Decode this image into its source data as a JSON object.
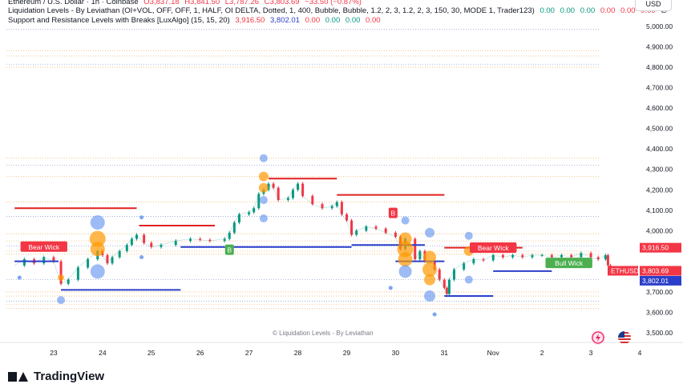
{
  "header": {
    "line1": {
      "symbol": "Ethereum / U.S. Dollar · 1h · Coinbase",
      "o": "O3,837.18",
      "h": "H3,841.50",
      "l": "L3,787.26",
      "c": "C3,803.69",
      "chg": "−33.50 (−0.87%)"
    },
    "line2": {
      "name": "Liquidation Levels - By Leviathan (OI+VOL, OFF, OFF, 1, HALF, OI DELTA, Dotted, 1, 400, Bubble, Bubble, 1.2, 2, 3, 1.2, 2, 3, 150, 30, MODE 1, Trader123)",
      "values": [
        "0.00",
        "0.00",
        "0.00",
        "0.00",
        "0.00",
        "0.00",
        "∅"
      ]
    },
    "line3": {
      "name": "Support and Resistance Levels with Breaks [LuxAlgo] (15, 15, 20)",
      "v1": "3,916.50",
      "v2": "3,802.01",
      "values": [
        "0.00",
        "0.00",
        "0.00",
        "0.00"
      ]
    }
  },
  "currency_button": "USD",
  "watermark": "© Liquidation Levels - By Leviathan",
  "brand": "TradingView",
  "colors": {
    "up": "#089981",
    "down": "#f23645",
    "resistance": "#e02020",
    "support": "#2b3ec9",
    "bubble_orange": "#ff9800",
    "bubble_blue": "#5b8def",
    "label_green": "#4caf50"
  },
  "price_axis": {
    "ticks": [
      "5,000.00",
      "4,900.00",
      "4,800.00",
      "4,700.00",
      "4,600.00",
      "4,500.00",
      "4,400.00",
      "4,300.00",
      "4,200.00",
      "4,100.00",
      "4,000.00",
      "3,700.00",
      "3,600.00",
      "3,500.00"
    ],
    "badges": [
      {
        "text": "3,916.50",
        "value": 3916.5,
        "color": "#f23645"
      },
      {
        "text": "3,803.69",
        "value": 3803.69,
        "color": "#f23645"
      },
      {
        "text": "3,802.01",
        "value": 3802.01,
        "color": "#2b3ec9"
      }
    ],
    "ticker_label": "ETHUSD"
  },
  "time_axis": [
    "23",
    "24",
    "25",
    "26",
    "27",
    "28",
    "29",
    "30",
    "31",
    "Nov",
    "2",
    "3",
    "4"
  ],
  "chart_data": {
    "type": "line",
    "ylim": [
      3480,
      5060
    ],
    "x_days": [
      22.2,
      4.95
    ],
    "close_path": [
      [
        22.2,
        3830
      ],
      [
        22.4,
        3860
      ],
      [
        22.6,
        3840
      ],
      [
        22.8,
        3870
      ],
      [
        23.0,
        3850
      ],
      [
        23.15,
        3740
      ],
      [
        23.3,
        3760
      ],
      [
        23.5,
        3820
      ],
      [
        23.7,
        3860
      ],
      [
        23.9,
        3900
      ],
      [
        24.0,
        3880
      ],
      [
        24.1,
        3840
      ],
      [
        24.2,
        3870
      ],
      [
        24.35,
        3900
      ],
      [
        24.5,
        3930
      ],
      [
        24.6,
        3960
      ],
      [
        24.7,
        3980
      ],
      [
        24.85,
        3940
      ],
      [
        25.0,
        3920
      ],
      [
        25.2,
        3930
      ],
      [
        25.5,
        3950
      ],
      [
        25.8,
        3960
      ],
      [
        26.0,
        3955
      ],
      [
        26.2,
        3950
      ],
      [
        26.5,
        3960
      ],
      [
        26.6,
        3990
      ],
      [
        26.7,
        4040
      ],
      [
        26.8,
        4080
      ],
      [
        27.0,
        4090
      ],
      [
        27.1,
        4110
      ],
      [
        27.2,
        4180
      ],
      [
        27.3,
        4200
      ],
      [
        27.4,
        4230
      ],
      [
        27.5,
        4210
      ],
      [
        27.6,
        4150
      ],
      [
        27.8,
        4160
      ],
      [
        27.9,
        4200
      ],
      [
        28.0,
        4230
      ],
      [
        28.1,
        4170
      ],
      [
        28.3,
        4130
      ],
      [
        28.5,
        4110
      ],
      [
        28.7,
        4120
      ],
      [
        28.8,
        4140
      ],
      [
        28.9,
        4080
      ],
      [
        29.0,
        4050
      ],
      [
        29.1,
        3980
      ],
      [
        29.2,
        4000
      ],
      [
        29.4,
        4020
      ],
      [
        29.6,
        4010
      ],
      [
        29.8,
        3990
      ],
      [
        30.0,
        3970
      ],
      [
        30.1,
        3910
      ],
      [
        30.2,
        3960
      ],
      [
        30.4,
        3860
      ],
      [
        30.5,
        3900
      ],
      [
        30.6,
        3850
      ],
      [
        30.8,
        3810
      ],
      [
        30.9,
        3760
      ],
      [
        31.0,
        3720
      ],
      [
        31.05,
        3690
      ],
      [
        31.1,
        3760
      ],
      [
        31.2,
        3810
      ],
      [
        31.4,
        3840
      ],
      [
        31.6,
        3860
      ],
      [
        31.8,
        3855
      ],
      [
        32.0,
        3880
      ],
      [
        32.2,
        3870
      ],
      [
        32.4,
        3880
      ],
      [
        32.6,
        3870
      ],
      [
        32.8,
        3880
      ],
      [
        33.0,
        3880
      ],
      [
        33.2,
        3870
      ],
      [
        33.4,
        3880
      ],
      [
        33.6,
        3870
      ],
      [
        33.8,
        3890
      ],
      [
        34.0,
        3870
      ],
      [
        34.15,
        3860
      ],
      [
        34.3,
        3880
      ],
      [
        34.35,
        3830
      ],
      [
        34.4,
        3803.69
      ]
    ],
    "resistance_segments": [
      {
        "x0": 22.2,
        "x1": 24.7,
        "y": 4110
      },
      {
        "x0": 24.75,
        "x1": 26.3,
        "y": 4025
      },
      {
        "x0": 27.4,
        "x1": 28.8,
        "y": 4255
      },
      {
        "x0": 28.8,
        "x1": 31.0,
        "y": 4175
      },
      {
        "x0": 31.0,
        "x1": 32.6,
        "y": 3916.5
      }
    ],
    "support_segments": [
      {
        "x0": 22.2,
        "x1": 23.1,
        "y": 3850
      },
      {
        "x0": 23.15,
        "x1": 25.6,
        "y": 3710
      },
      {
        "x0": 25.6,
        "x1": 29.1,
        "y": 3920
      },
      {
        "x0": 29.1,
        "x1": 30.6,
        "y": 3930
      },
      {
        "x0": 30.0,
        "x1": 31.0,
        "y": 3850
      },
      {
        "x0": 31.0,
        "x1": 32.0,
        "y": 3680
      },
      {
        "x0": 32.0,
        "x1": 33.2,
        "y": 3802.01
      }
    ],
    "bubbles": [
      {
        "x": 23.9,
        "y": 4040,
        "r": 9,
        "c": "blue"
      },
      {
        "x": 23.9,
        "y": 3960,
        "r": 10,
        "c": "orange"
      },
      {
        "x": 23.9,
        "y": 3910,
        "r": 9,
        "c": "orange"
      },
      {
        "x": 23.9,
        "y": 3800,
        "r": 9,
        "c": "blue"
      },
      {
        "x": 27.3,
        "y": 4355,
        "r": 5,
        "c": "blue"
      },
      {
        "x": 27.3,
        "y": 4265,
        "r": 6,
        "c": "orange"
      },
      {
        "x": 27.3,
        "y": 4210,
        "r": 6,
        "c": "orange"
      },
      {
        "x": 27.3,
        "y": 4150,
        "r": 5,
        "c": "blue"
      },
      {
        "x": 27.3,
        "y": 4060,
        "r": 5,
        "c": "blue"
      },
      {
        "x": 30.2,
        "y": 4050,
        "r": 5,
        "c": "blue"
      },
      {
        "x": 30.2,
        "y": 3960,
        "r": 8,
        "c": "orange"
      },
      {
        "x": 30.2,
        "y": 3910,
        "r": 10,
        "c": "orange"
      },
      {
        "x": 30.2,
        "y": 3860,
        "r": 9,
        "c": "orange"
      },
      {
        "x": 30.2,
        "y": 3800,
        "r": 8,
        "c": "blue"
      },
      {
        "x": 30.7,
        "y": 3990,
        "r": 6,
        "c": "blue"
      },
      {
        "x": 30.7,
        "y": 3870,
        "r": 8,
        "c": "orange"
      },
      {
        "x": 30.7,
        "y": 3810,
        "r": 9,
        "c": "orange"
      },
      {
        "x": 30.7,
        "y": 3760,
        "r": 7,
        "c": "orange"
      },
      {
        "x": 30.7,
        "y": 3680,
        "r": 7,
        "c": "blue"
      },
      {
        "x": 31.5,
        "y": 3975,
        "r": 5,
        "c": "blue"
      },
      {
        "x": 31.5,
        "y": 3900,
        "r": 6,
        "c": "orange"
      },
      {
        "x": 31.5,
        "y": 3760,
        "r": 5,
        "c": "blue"
      },
      {
        "x": 23.15,
        "y": 3660,
        "r": 5,
        "c": "blue"
      },
      {
        "x": 23.15,
        "y": 3770,
        "r": 4,
        "c": "orange"
      }
    ],
    "small_dots": [
      {
        "x": 24.8,
        "y": 4065
      },
      {
        "x": 24.8,
        "y": 3870
      },
      {
        "x": 30.8,
        "y": 3590
      },
      {
        "x": 29.9,
        "y": 3720
      },
      {
        "x": 22.3,
        "y": 3770
      }
    ],
    "dotted_levels": [
      4985,
      4880,
      4855,
      4815,
      4800,
      4355,
      4320,
      4265,
      4140,
      4070,
      3985,
      3950,
      3925,
      3900,
      3885,
      3760,
      3700,
      3680,
      3655,
      3640,
      3620
    ],
    "labels": [
      {
        "text": "Bear Wick",
        "x": 22.8,
        "y": 3920,
        "color": "#f23645"
      },
      {
        "text": "Bear Wick",
        "x": 32.0,
        "y": 3915,
        "color": "#f23645"
      },
      {
        "text": "Bull Wick",
        "x": 33.55,
        "y": 3840,
        "color": "#4caf50"
      },
      {
        "text": "B",
        "x": 26.6,
        "y": 3905,
        "color": "#4caf50"
      },
      {
        "text": "B",
        "x": 29.95,
        "y": 4085,
        "color": "#f23645"
      }
    ]
  }
}
